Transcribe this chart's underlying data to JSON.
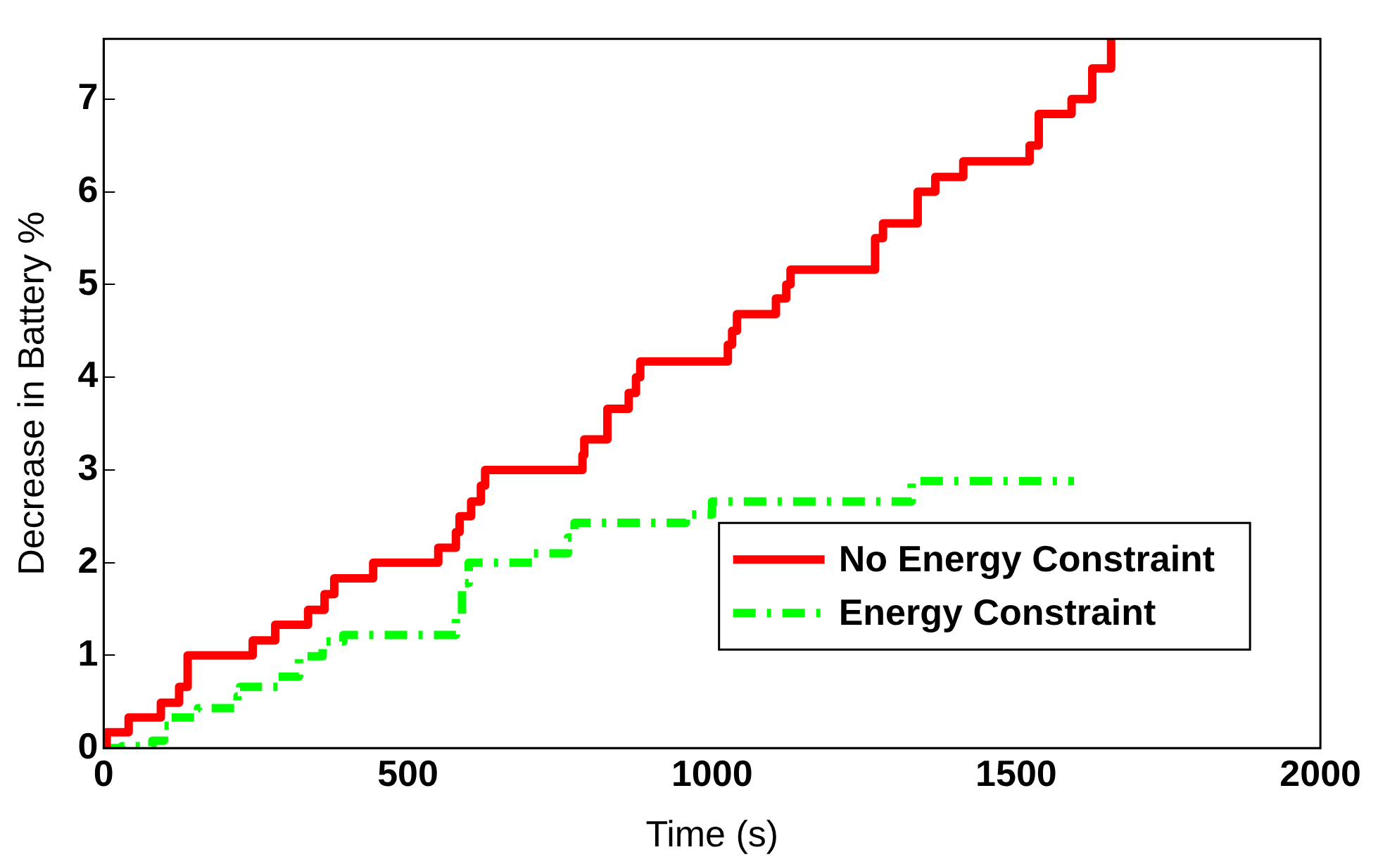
{
  "chart_data": {
    "type": "step",
    "xlabel": "Time (s)",
    "ylabel": "Decrease in Battery %",
    "xlim": [
      0,
      2000
    ],
    "xticks": [
      0,
      500,
      1000,
      1500,
      2000
    ],
    "ylim": [
      0,
      7.65
    ],
    "yticks": [
      0,
      1,
      2,
      3,
      4,
      5,
      6,
      7
    ],
    "grid": false,
    "legend": "bottom right",
    "series": [
      {
        "name": "No Energy Constraint",
        "color": "#ff0000",
        "line_style": "solid",
        "x": [
          0,
          5,
          41,
          94,
          124,
          138,
          245,
          282,
          336,
          363,
          379,
          443,
          550,
          579,
          585,
          604,
          620,
          627,
          787,
          790,
          828,
          863,
          875,
          882,
          1026,
          1033,
          1041,
          1105,
          1122,
          1129,
          1268,
          1281,
          1338,
          1367,
          1413,
          1522,
          1537,
          1591,
          1625,
          1656
        ],
        "values": [
          0,
          0.17,
          0.33,
          0.49,
          0.66,
          1.0,
          1.16,
          1.33,
          1.49,
          1.66,
          1.83,
          2.0,
          2.16,
          2.33,
          2.5,
          2.66,
          2.83,
          3.0,
          3.16,
          3.33,
          3.66,
          3.83,
          4.0,
          4.17,
          4.35,
          4.5,
          4.68,
          4.85,
          5.0,
          5.16,
          5.5,
          5.66,
          6.0,
          6.16,
          6.33,
          6.5,
          6.84,
          7.0,
          7.33,
          7.65
        ]
      },
      {
        "name": "Energy Constraint",
        "color": "#00ff00",
        "line_style": "dashdot",
        "x": [
          0,
          30,
          80,
          99,
          107,
          155,
          220,
          224,
          286,
          321,
          360,
          394,
          579,
          589,
          600,
          705,
          763,
          774,
          957,
          1000,
          1328,
          1595
        ],
        "values": [
          0,
          0.02,
          0.08,
          0.24,
          0.33,
          0.43,
          0.56,
          0.66,
          0.77,
          0.99,
          1.15,
          1.22,
          1.44,
          1.78,
          2.0,
          2.1,
          2.27,
          2.43,
          2.52,
          2.66,
          2.88,
          2.88
        ]
      }
    ]
  }
}
